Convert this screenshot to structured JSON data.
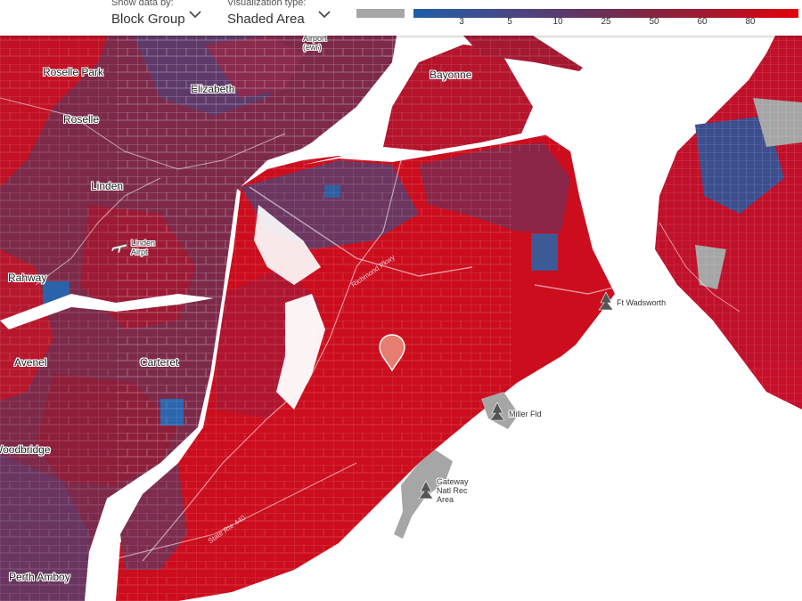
{
  "toolbar": {
    "show_data": {
      "label": "Show data by:",
      "value": "Block Group"
    },
    "visualization": {
      "label": "Visualization type:",
      "value": "Shaded Area"
    }
  },
  "legend": {
    "ticks": [
      "3",
      "5",
      "10",
      "25",
      "50",
      "60",
      "80"
    ],
    "colors": {
      "nodata": "#a6a6a6",
      "low": "#205fa6",
      "mid": "#6b2f58",
      "high": "#e3000b"
    }
  },
  "places": {
    "roselle_park": "Roselle Park",
    "roselle": "Roselle",
    "elizabeth": "Elizabeth",
    "linden": "Linden",
    "linden_airport": "Linden Airpt",
    "rahway": "Rahway",
    "avenel": "Avenel",
    "carteret": "Carteret",
    "woodbridge": "Woodbridge",
    "perth_amboy": "Perth Amboy",
    "bayonne": "Bayonne",
    "airport": "Airport (ewr)",
    "ft_wadsworth": "Ft Wadsworth",
    "miller_fld": "Miller Fld",
    "gateway": "Gateway Natl Rec Area"
  },
  "roads": {
    "richmond_pkwy": "Richmond Pkwy",
    "state_rte_440": "State Rte 440"
  }
}
